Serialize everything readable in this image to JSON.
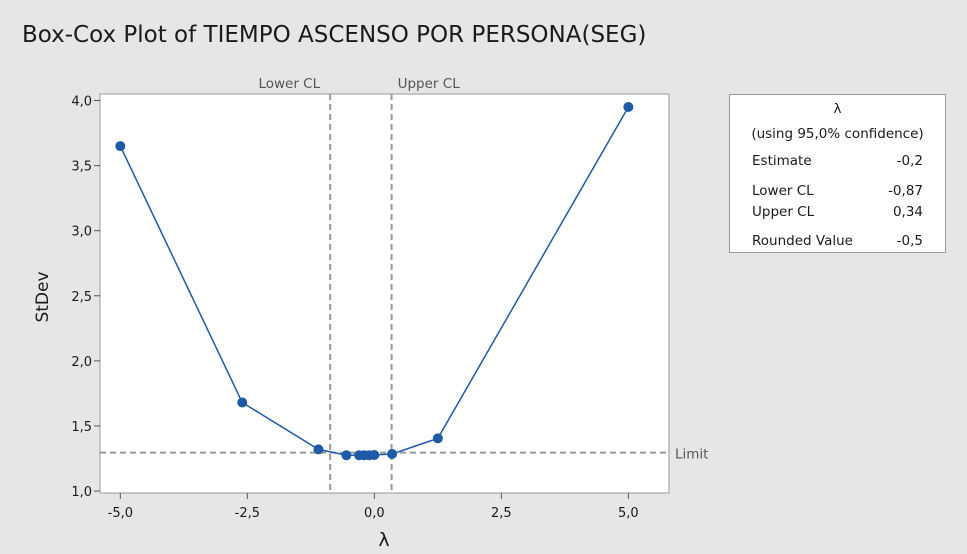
{
  "title": "Box-Cox Plot of TIEMPO ASCENSO POR PERSONA(SEG)",
  "chart_data": {
    "type": "line",
    "xlabel": "λ",
    "ylabel": "StDev",
    "xlim": [
      -5.4,
      5.8
    ],
    "ylim": [
      0.985,
      4.05
    ],
    "x_ticks": [
      -5.0,
      -2.5,
      0.0,
      2.5,
      5.0
    ],
    "x_tick_labels": [
      "-5,0",
      "-2,5",
      "0,0",
      "2,5",
      "5,0"
    ],
    "y_ticks": [
      1.0,
      1.5,
      2.0,
      2.5,
      3.0,
      3.5,
      4.0
    ],
    "y_tick_labels": [
      "1,0",
      "1,5",
      "2,0",
      "2,5",
      "3,0",
      "3,5",
      "4,0"
    ],
    "series": [
      {
        "points": [
          {
            "x": -5.0,
            "y": 3.65
          },
          {
            "x": -2.6,
            "y": 1.68
          },
          {
            "x": -1.1,
            "y": 1.32
          },
          {
            "x": -0.55,
            "y": 1.275
          },
          {
            "x": -0.3,
            "y": 1.275
          },
          {
            "x": -0.2,
            "y": 1.275
          },
          {
            "x": -0.1,
            "y": 1.275
          },
          {
            "x": 0.0,
            "y": 1.277
          },
          {
            "x": 0.35,
            "y": 1.285
          },
          {
            "x": 1.25,
            "y": 1.405
          },
          {
            "x": 5.0,
            "y": 3.95
          }
        ]
      }
    ],
    "reference_lines": {
      "lower_cl": {
        "x": -0.87,
        "label": "Lower CL"
      },
      "upper_cl": {
        "x": 0.34,
        "label": "Upper CL"
      },
      "limit": {
        "y": 1.295,
        "label": "Limit"
      }
    },
    "grid": false
  },
  "stats_box": {
    "header": "λ",
    "subheader": "(using 95,0% confidence)",
    "rows": [
      {
        "label": "Estimate",
        "value": "-0,2"
      },
      {
        "label": "Lower CL",
        "value": "-0,87"
      },
      {
        "label": "Upper CL",
        "value": "0,34"
      },
      {
        "label": "Rounded Value",
        "value": "-0,5"
      }
    ]
  },
  "colors": {
    "series": "#1f5aa6",
    "reference": "#9a9a9a",
    "background": "#e6e6e6",
    "plot_area": "#ffffff"
  }
}
